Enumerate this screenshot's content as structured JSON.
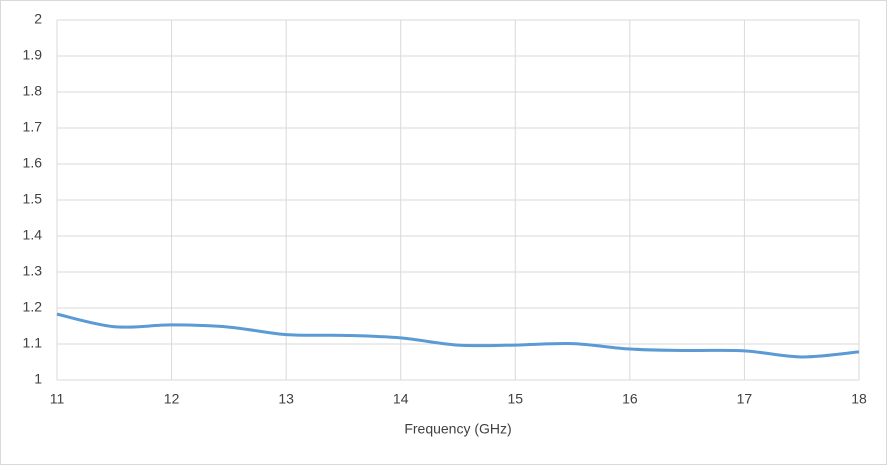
{
  "chart_data": {
    "type": "line",
    "x_label": "Frequency (GHz)",
    "x": [
      11,
      11.5,
      12,
      12.5,
      13,
      13.5,
      14,
      14.5,
      15,
      15.5,
      16,
      16.5,
      17,
      17.5,
      18
    ],
    "series": [
      {
        "color": "#5b9bd5",
        "values": [
          1.183,
          1.148,
          1.153,
          1.147,
          1.126,
          1.124,
          1.117,
          1.097,
          1.097,
          1.101,
          1.086,
          1.082,
          1.081,
          1.064,
          1.078
        ]
      }
    ],
    "xlim": [
      11,
      18
    ],
    "xticks": [
      11,
      12,
      13,
      14,
      15,
      16,
      17,
      18
    ],
    "ylim": [
      1,
      2
    ],
    "yticks": [
      1,
      1.1,
      1.2,
      1.3,
      1.4,
      1.5,
      1.6,
      1.7,
      1.8,
      1.9,
      2
    ],
    "grid": true
  }
}
